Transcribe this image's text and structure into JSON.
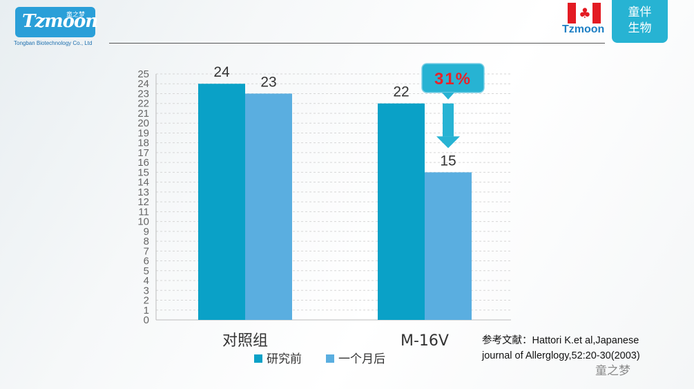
{
  "header": {
    "logo_text": "Tzmoon",
    "logo_cn": "童之梦",
    "logo_sub": "Tongban Biotechnology Co., Ltd",
    "brand_name": "Tzmoon",
    "brand_cn_line1": "童伴",
    "brand_cn_line2": "生物"
  },
  "chart_data": {
    "type": "bar",
    "categories": [
      "对照组",
      "M-16V"
    ],
    "series": [
      {
        "name": "研究前",
        "values": [
          24,
          22
        ],
        "color": "#0aa1c7"
      },
      {
        "name": "一个月后",
        "values": [
          23,
          15
        ],
        "color": "#5aaee0"
      }
    ],
    "data_labels": [
      [
        "24",
        "23"
      ],
      [
        "22",
        "15"
      ]
    ],
    "ylim": [
      0,
      25
    ],
    "yticks": [
      "0",
      "1",
      "2",
      "3",
      "4",
      "5",
      "6",
      "7",
      "8",
      "9",
      "10",
      "11",
      "12",
      "13",
      "14",
      "15",
      "16",
      "17",
      "18",
      "19",
      "20",
      "21",
      "22",
      "23",
      "24",
      "25"
    ],
    "grid": true,
    "legend_position": "bottom",
    "annotation": {
      "text": "31%",
      "color": "#e8222a",
      "box_color": "#27b3d3",
      "arrow_color": "#27b3d3"
    }
  },
  "reference": {
    "line1": "参考文献：Hattori K.et al,Japanese",
    "line2": "journal of Allerglogy,52:20-30(2003)"
  },
  "watermark": "童之梦"
}
